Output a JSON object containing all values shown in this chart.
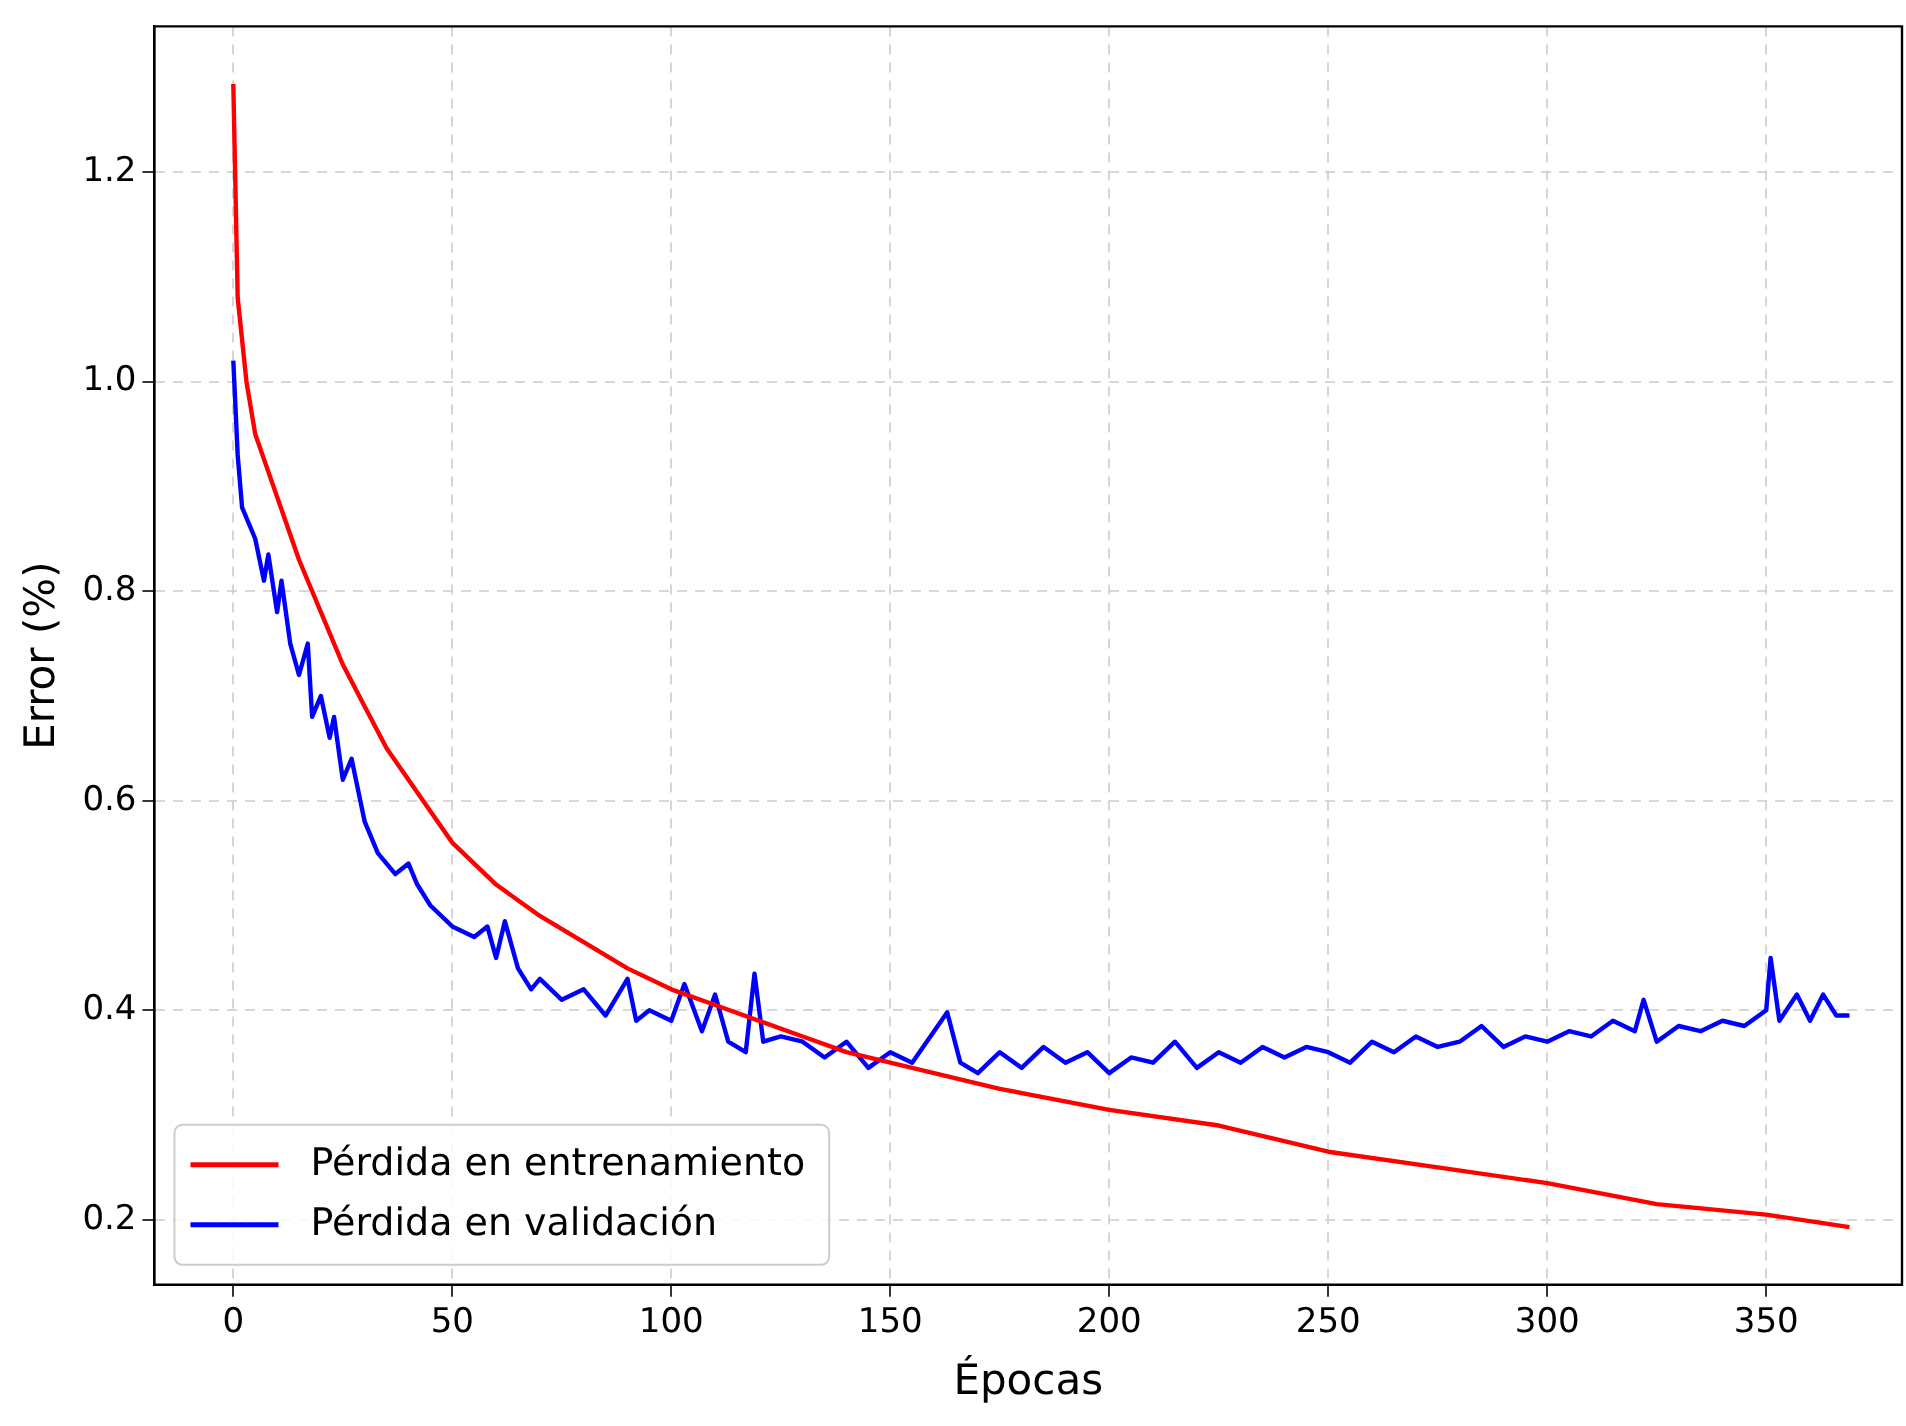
{
  "chart_data": {
    "type": "line",
    "xlabel": "Épocas",
    "ylabel": "Error (%)",
    "xlim": [
      -18,
      381
    ],
    "xticks": [
      0,
      50,
      100,
      150,
      200,
      250,
      300,
      350
    ],
    "ylim": [
      0.138,
      1.339
    ],
    "yticks": [
      {
        "value": 0.2,
        "label": "0.2"
      },
      {
        "value": 0.4,
        "label": "0.4"
      },
      {
        "value": 0.6,
        "label": "0.6"
      },
      {
        "value": 0.8,
        "label": "0.8"
      },
      {
        "value": 1.0,
        "label": "1.0"
      },
      {
        "value": 1.2,
        "label": "1.2"
      }
    ],
    "grid": true,
    "legend": "bottom left",
    "marker": "none",
    "line_style": "solid",
    "series": [
      {
        "name": "Pérdida en entrenamiento",
        "color": "#ff0000",
        "x": [
          0,
          1,
          3,
          5,
          10,
          15,
          20,
          25,
          30,
          35,
          40,
          45,
          50,
          60,
          70,
          80,
          90,
          100,
          110,
          120,
          130,
          140,
          150,
          175,
          200,
          225,
          250,
          275,
          300,
          325,
          350,
          369
        ],
        "values": [
          1.284,
          1.08,
          1.0,
          0.95,
          0.89,
          0.83,
          0.78,
          0.73,
          0.69,
          0.65,
          0.62,
          0.59,
          0.56,
          0.52,
          0.49,
          0.465,
          0.44,
          0.42,
          0.405,
          0.39,
          0.375,
          0.36,
          0.35,
          0.325,
          0.305,
          0.29,
          0.265,
          0.25,
          0.235,
          0.215,
          0.205,
          0.193
        ]
      },
      {
        "name": "Pérdida en validación",
        "color": "#0000ff",
        "x": [
          0,
          1,
          2,
          5,
          7,
          8,
          10,
          11,
          13,
          15,
          17,
          18,
          20,
          22,
          23,
          25,
          27,
          30,
          33,
          35,
          37,
          40,
          42,
          45,
          50,
          55,
          58,
          60,
          62,
          65,
          68,
          70,
          75,
          80,
          85,
          90,
          92,
          95,
          100,
          103,
          107,
          110,
          113,
          117,
          119,
          121,
          125,
          130,
          135,
          140,
          145,
          150,
          155,
          160,
          163,
          166,
          170,
          175,
          180,
          185,
          190,
          195,
          200,
          205,
          210,
          215,
          220,
          225,
          230,
          235,
          240,
          245,
          250,
          255,
          260,
          265,
          270,
          275,
          280,
          285,
          290,
          295,
          300,
          305,
          310,
          315,
          320,
          322,
          325,
          330,
          335,
          340,
          345,
          350,
          351,
          353,
          357,
          360,
          363,
          366,
          369
        ],
        "values": [
          1.02,
          0.93,
          0.88,
          0.85,
          0.81,
          0.835,
          0.78,
          0.81,
          0.75,
          0.72,
          0.75,
          0.68,
          0.7,
          0.66,
          0.68,
          0.62,
          0.64,
          0.58,
          0.55,
          0.54,
          0.53,
          0.54,
          0.52,
          0.5,
          0.48,
          0.47,
          0.48,
          0.45,
          0.485,
          0.44,
          0.42,
          0.43,
          0.41,
          0.42,
          0.395,
          0.43,
          0.39,
          0.4,
          0.39,
          0.425,
          0.38,
          0.415,
          0.37,
          0.36,
          0.435,
          0.37,
          0.375,
          0.37,
          0.355,
          0.37,
          0.345,
          0.36,
          0.35,
          0.38,
          0.398,
          0.35,
          0.34,
          0.36,
          0.345,
          0.365,
          0.35,
          0.36,
          0.34,
          0.355,
          0.35,
          0.37,
          0.345,
          0.36,
          0.35,
          0.365,
          0.355,
          0.365,
          0.36,
          0.35,
          0.37,
          0.36,
          0.375,
          0.365,
          0.37,
          0.385,
          0.365,
          0.375,
          0.37,
          0.38,
          0.375,
          0.39,
          0.38,
          0.41,
          0.37,
          0.385,
          0.38,
          0.39,
          0.385,
          0.4,
          0.45,
          0.39,
          0.415,
          0.39,
          0.415,
          0.395,
          0.395
        ]
      }
    ]
  }
}
